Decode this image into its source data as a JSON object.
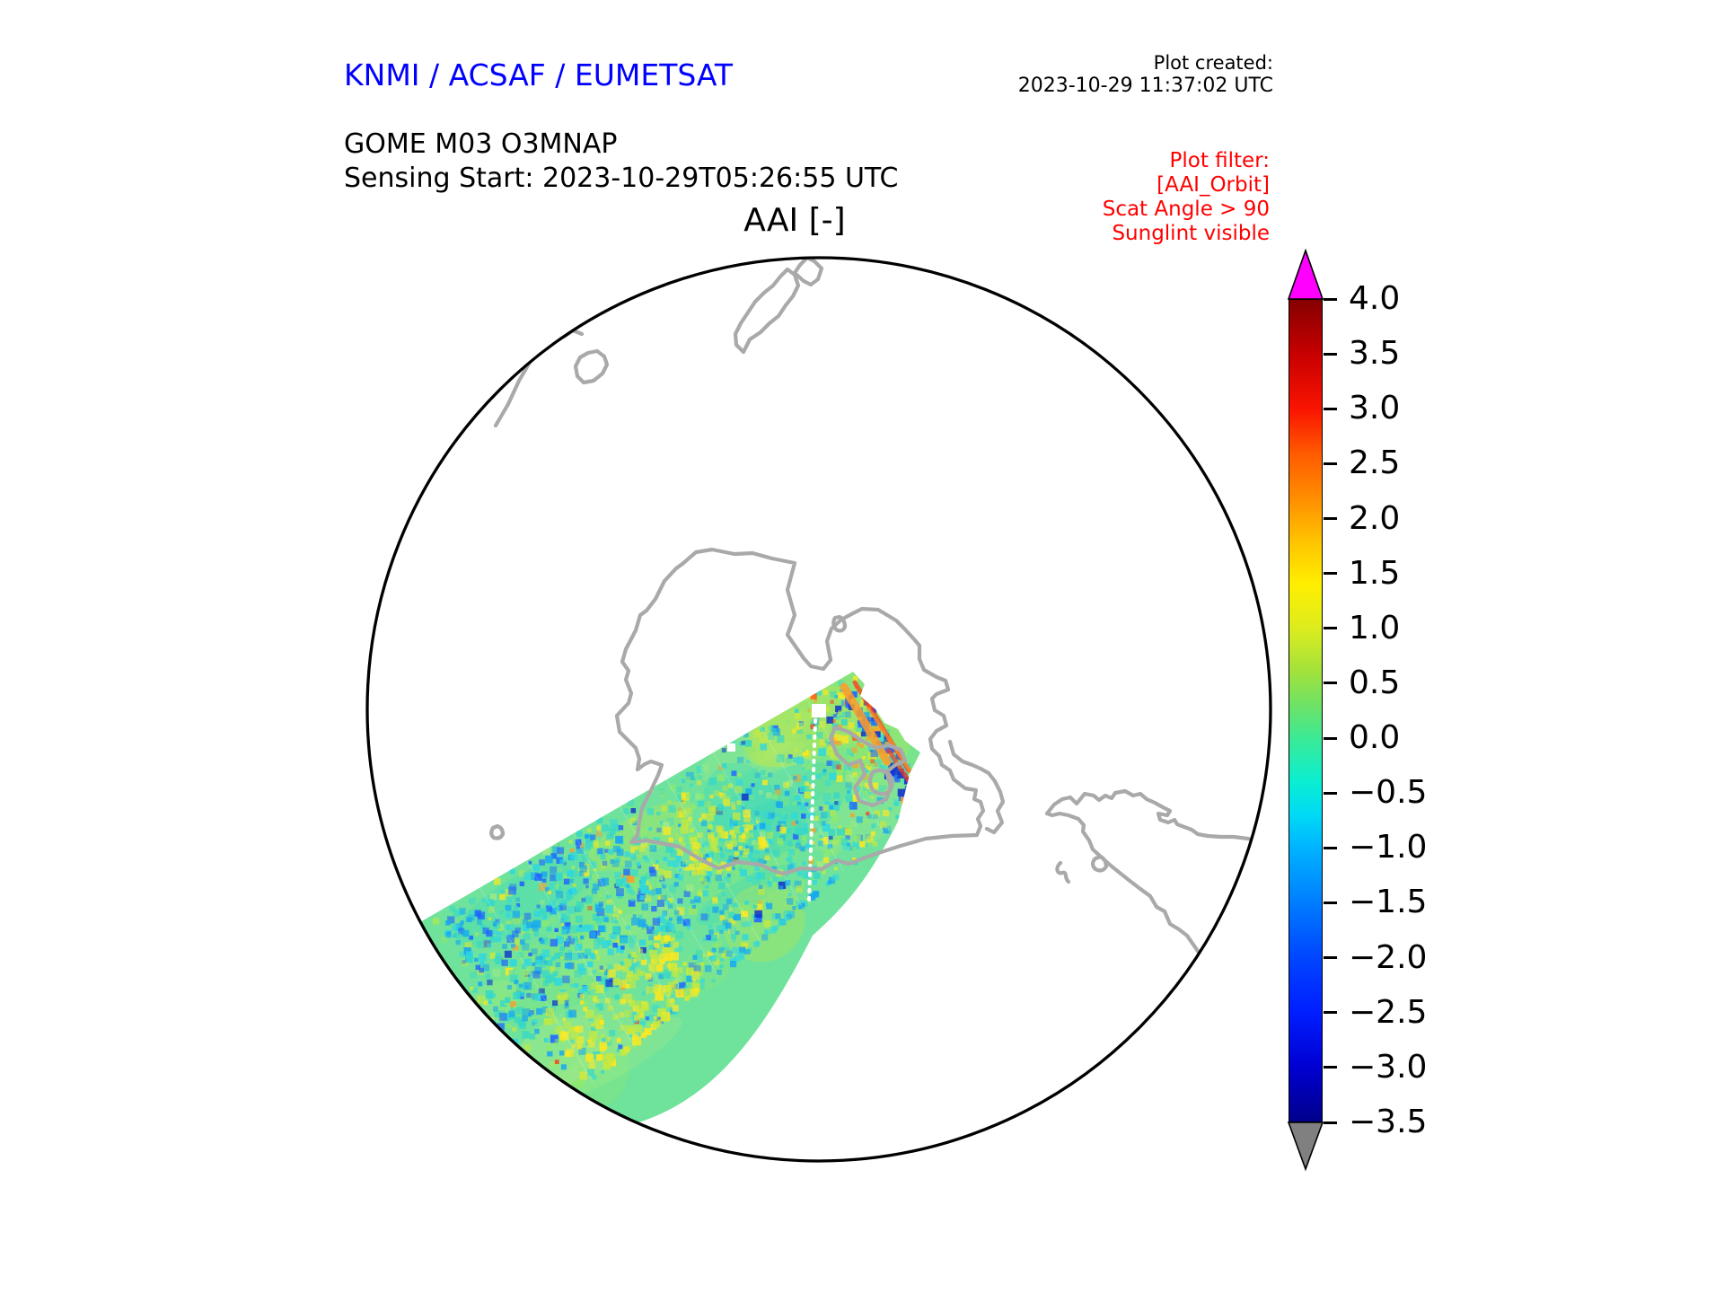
{
  "header": {
    "title": "KNMI / ACSAF / EUMETSAT",
    "product_line": "GOME M03 O3MNAP",
    "sensing_line": "Sensing Start: 2023-10-29T05:26:55 UTC",
    "plot_created_label": "Plot created:",
    "plot_created_time": "2023-10-29 11:37:02 UTC"
  },
  "plot_filter": {
    "label": "Plot filter:",
    "lines": [
      "[AAI_Orbit]",
      "Scat Angle > 90",
      "Sunglint visible"
    ]
  },
  "map": {
    "title": "AAI [-]"
  },
  "colorbar": {
    "value_max": 4.0,
    "value_min": -3.5,
    "tick_labels": [
      "4.0",
      "3.5",
      "3.0",
      "2.5",
      "2.0",
      "1.5",
      "1.0",
      "0.5",
      "0.0",
      "−0.5",
      "−1.0",
      "−1.5",
      "−2.0",
      "−2.5",
      "−3.0",
      "−3.5"
    ],
    "over_arrow_color": "#ff00ff",
    "under_arrow_color": "#808080",
    "gradient_stops": [
      {
        "v": 4.0,
        "c": "#850000"
      },
      {
        "v": 3.5,
        "c": "#c80000"
      },
      {
        "v": 3.0,
        "c": "#fa1400"
      },
      {
        "v": 2.6,
        "c": "#ff5a00"
      },
      {
        "v": 2.2,
        "c": "#ff8c00"
      },
      {
        "v": 1.8,
        "c": "#ffc300"
      },
      {
        "v": 1.4,
        "c": "#ffef00"
      },
      {
        "v": 1.0,
        "c": "#dcec1e"
      },
      {
        "v": 0.6,
        "c": "#a0e23c"
      },
      {
        "v": 0.3,
        "c": "#6ee266"
      },
      {
        "v": 0.0,
        "c": "#3cea96"
      },
      {
        "v": -0.4,
        "c": "#0aeed2"
      },
      {
        "v": -0.7,
        "c": "#00daf5"
      },
      {
        "v": -1.0,
        "c": "#00b4ff"
      },
      {
        "v": -1.5,
        "c": "#007dff"
      },
      {
        "v": -2.0,
        "c": "#0046ff"
      },
      {
        "v": -2.5,
        "c": "#001eff"
      },
      {
        "v": -3.0,
        "c": "#0000d2"
      },
      {
        "v": -3.5,
        "c": "#00008b"
      }
    ]
  },
  "map_colors": {
    "coastline": "#a9a9a9",
    "boundary": "#000000",
    "title_blue": "#0000ff",
    "filter_red": "#ff0000"
  },
  "swath_palette": {
    "base": "#6fe39b",
    "teal": "#35d8c8",
    "green": "#8de96e",
    "light_green": "#a4ea84",
    "yellow_green": "#c9e93c",
    "yellow": "#ffe81e",
    "cyan": "#2fd8e0",
    "sky": "#18a8f0",
    "blue": "#1f66ff",
    "dark_blue": "#1233cc",
    "orange": "#ff9c28",
    "red": "#ff3818",
    "track_white": "#ffffff"
  },
  "chart_data": {
    "type": "heatmap",
    "title": "AAI [-]",
    "projection": "orthographic polar view (Antarctica centered), circular map boundary",
    "colorbar_range": [
      -3.5,
      4.0
    ],
    "colorbar_tick_values": [
      4.0,
      3.5,
      3.0,
      2.5,
      2.0,
      1.5,
      1.0,
      0.5,
      0.0,
      -0.5,
      -1.0,
      -1.5,
      -2.0,
      -2.5,
      -3.0,
      -3.5
    ],
    "colorbar_over_value_color": "magenta",
    "colorbar_under_value_color": "gray",
    "series": [
      {
        "name": "AAI swath",
        "description": "single diagonal GOME-2 Metop orbit swath crossing from lower-left of the disc to the Antarctic Peninsula",
        "typical_value_range": [
          -1.5,
          1.5
        ]
      }
    ],
    "annotations": [
      {
        "feature": "orange-red streaks",
        "approx_value": 2.5,
        "location": "northeast end of swath near Antarctic Peninsula"
      },
      {
        "feature": "dark blue pixels",
        "approx_value": -2.5,
        "location": "along northeast swath end edge"
      },
      {
        "feature": "yellow patches",
        "approx_value": 1.2,
        "location": "swath interior and southwest part"
      },
      {
        "feature": "cyan-blue speckling",
        "approx_value": -1.2,
        "location": "swath interior"
      },
      {
        "feature": "white dotted track line",
        "location": "right third of swath"
      }
    ]
  }
}
